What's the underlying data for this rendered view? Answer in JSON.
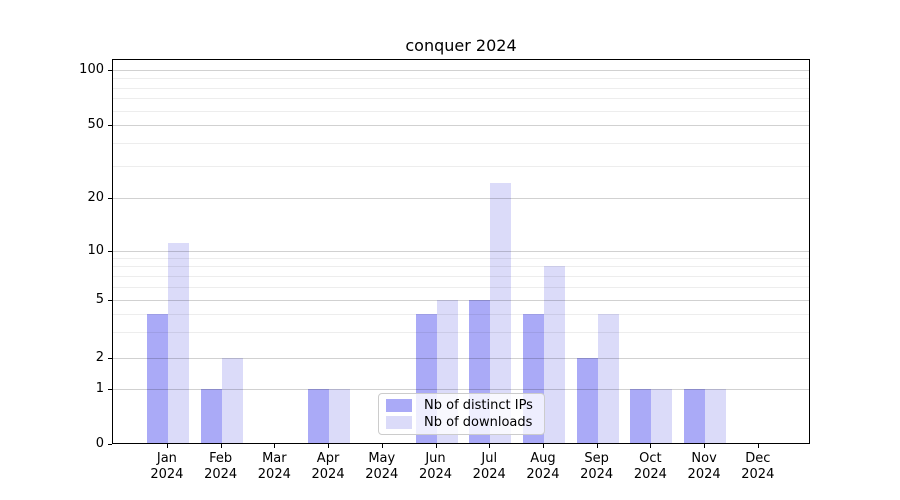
{
  "chart_data": {
    "type": "bar",
    "title": "conquer 2024",
    "categories": [
      "Jan 2024",
      "Feb 2024",
      "Mar 2024",
      "Apr 2024",
      "May 2024",
      "Jun 2024",
      "Jul 2024",
      "Aug 2024",
      "Sep 2024",
      "Oct 2024",
      "Nov 2024",
      "Dec 2024"
    ],
    "x_tick_month": [
      "Jan",
      "Feb",
      "Mar",
      "Apr",
      "May",
      "Jun",
      "Jul",
      "Aug",
      "Sep",
      "Oct",
      "Nov",
      "Dec"
    ],
    "x_tick_year": "2024",
    "series": [
      {
        "name": "Nb of distinct IPs",
        "color": "#aaaaf7",
        "values": [
          4,
          1,
          0,
          1,
          0,
          4,
          5,
          4,
          2,
          1,
          1,
          0
        ]
      },
      {
        "name": "Nb of downloads",
        "color": "#dbdbf9",
        "values": [
          11,
          2,
          0,
          1,
          0,
          5,
          24,
          8,
          4,
          1,
          1,
          0
        ]
      }
    ],
    "y_axis": {
      "scale": "symlog",
      "tick_values": [
        0,
        1,
        2,
        5,
        10,
        20,
        50,
        100
      ],
      "tick_labels": [
        "0",
        "1",
        "2",
        "5",
        "10",
        "20",
        "50",
        "100"
      ],
      "minor_tick_values": [
        3,
        4,
        6,
        7,
        8,
        9,
        30,
        40,
        60,
        70,
        80,
        90
      ]
    },
    "grid": true,
    "legend_position": "lower center inside",
    "legend_entries": [
      "Nb of distinct IPs",
      "Nb of downloads"
    ]
  },
  "colors": {
    "bar_distinct_ips": "#aaaaf7",
    "bar_downloads": "#dbdbf9",
    "spine": "#000000",
    "legend_border": "#cccccc"
  }
}
